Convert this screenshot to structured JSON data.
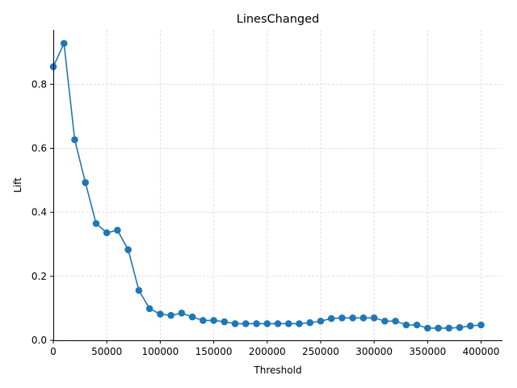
{
  "colors": {
    "series": "#1f77b4",
    "grid": "#d9d9d9",
    "axis": "#000000"
  },
  "chart_data": {
    "type": "line",
    "title": "LinesChanged",
    "xlabel": "Threshold",
    "ylabel": "Lift",
    "xlim": [
      0,
      420000
    ],
    "ylim": [
      0,
      0.97
    ],
    "xticks": [
      0,
      50000,
      100000,
      150000,
      200000,
      250000,
      300000,
      350000,
      400000
    ],
    "yticks": [
      0.0,
      0.2,
      0.4,
      0.6,
      0.8
    ],
    "xtick_labels": [
      "0",
      "50000",
      "100000",
      "150000",
      "200000",
      "250000",
      "300000",
      "350000",
      "400000"
    ],
    "ytick_labels": [
      "0.0",
      "0.2",
      "0.4",
      "0.6",
      "0.8"
    ],
    "grid": true,
    "markers": "circle",
    "x": [
      0,
      10000,
      20000,
      30000,
      40000,
      50000,
      60000,
      70000,
      80000,
      90000,
      100000,
      110000,
      120000,
      130000,
      140000,
      150000,
      160000,
      170000,
      180000,
      190000,
      200000,
      210000,
      220000,
      230000,
      240000,
      250000,
      260000,
      270000,
      280000,
      290000,
      300000,
      310000,
      320000,
      330000,
      340000,
      350000,
      360000,
      370000,
      380000,
      390000,
      400000
    ],
    "y": [
      0.855,
      0.928,
      0.627,
      0.493,
      0.365,
      0.336,
      0.344,
      0.283,
      0.156,
      0.099,
      0.082,
      0.078,
      0.085,
      0.073,
      0.062,
      0.062,
      0.058,
      0.052,
      0.052,
      0.052,
      0.052,
      0.052,
      0.052,
      0.052,
      0.055,
      0.06,
      0.068,
      0.07,
      0.07,
      0.07,
      0.07,
      0.06,
      0.06,
      0.048,
      0.048,
      0.038,
      0.038,
      0.038,
      0.04,
      0.045,
      0.048
    ]
  }
}
